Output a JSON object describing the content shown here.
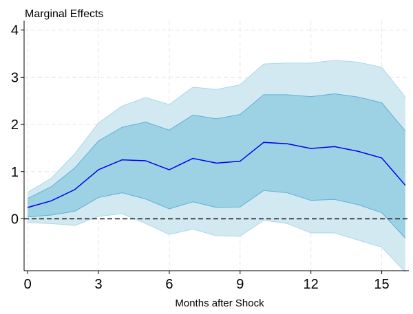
{
  "chart_data": {
    "type": "area",
    "title": "Marginal Effects",
    "xlabel": "Months after Shock",
    "ylabel": "",
    "xlim": [
      -0.15,
      16.15
    ],
    "ylim": [
      -1.1,
      4.2
    ],
    "x_ticks": [
      0,
      3,
      6,
      9,
      12,
      15
    ],
    "y_ticks": [
      0,
      1,
      2,
      3,
      4
    ],
    "grid": true,
    "reference_line": {
      "y": 0,
      "style": "dashed"
    },
    "x": [
      0,
      1,
      2,
      3,
      4,
      5,
      6,
      7,
      8,
      9,
      10,
      11,
      12,
      13,
      14,
      15,
      16
    ],
    "series": [
      {
        "role": "point_estimate",
        "values": [
          0.24,
          0.38,
          0.62,
          1.04,
          1.25,
          1.23,
          1.04,
          1.28,
          1.18,
          1.22,
          1.62,
          1.59,
          1.49,
          1.53,
          1.43,
          1.29,
          0.71
        ]
      },
      {
        "role": "inner_band_lower",
        "values": [
          0.04,
          0.08,
          0.16,
          0.45,
          0.55,
          0.42,
          0.21,
          0.36,
          0.24,
          0.25,
          0.6,
          0.55,
          0.39,
          0.41,
          0.3,
          0.13,
          -0.41
        ]
      },
      {
        "role": "inner_band_upper",
        "values": [
          0.43,
          0.68,
          1.08,
          1.65,
          1.94,
          2.05,
          1.88,
          2.2,
          2.12,
          2.21,
          2.63,
          2.63,
          2.59,
          2.65,
          2.58,
          2.46,
          1.86
        ]
      },
      {
        "role": "outer_band_lower",
        "values": [
          -0.08,
          -0.1,
          -0.14,
          0.05,
          0.11,
          -0.1,
          -0.33,
          -0.22,
          -0.36,
          -0.37,
          -0.03,
          -0.1,
          -0.3,
          -0.3,
          -0.45,
          -0.6,
          -1.13
        ]
      },
      {
        "role": "outer_band_upper",
        "values": [
          0.56,
          0.86,
          1.38,
          2.03,
          2.39,
          2.57,
          2.42,
          2.79,
          2.74,
          2.84,
          3.28,
          3.3,
          3.3,
          3.36,
          3.32,
          3.21,
          2.58
        ]
      }
    ],
    "colors": {
      "outer_band": "#d3e9f2",
      "outer_band_edge": "#a9d7e8",
      "inner_band": "#9dd1e4",
      "inner_band_edge": "#5fb1d3",
      "point_estimate": "#0000ee",
      "zero_line": "#222222",
      "grid": "#e6e6e6"
    }
  }
}
